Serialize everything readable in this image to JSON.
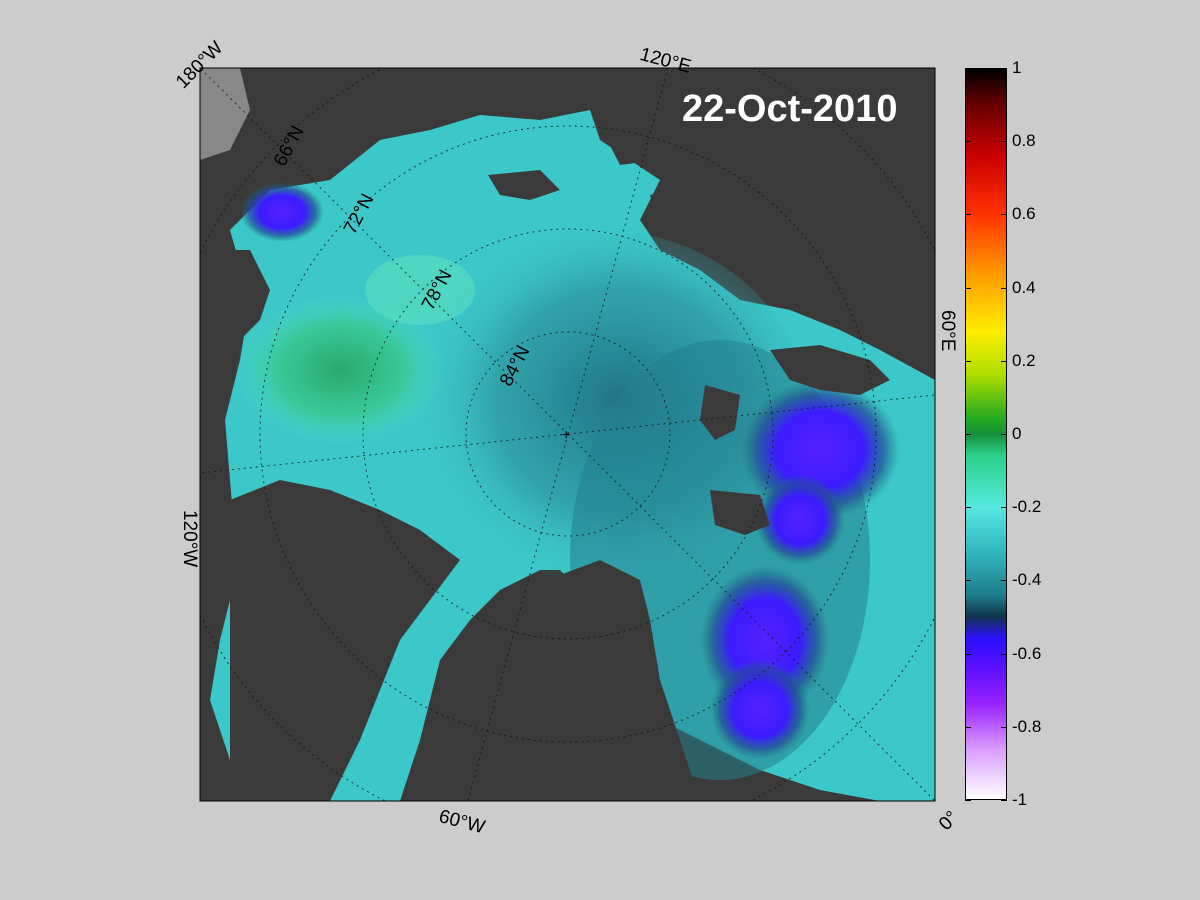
{
  "map": {
    "date": "22-Oct-2010",
    "lon_labels": [
      "180°W",
      "120°E",
      "60°E",
      "0°",
      "60°W",
      "120°W"
    ],
    "lat_labels": [
      "66°N",
      "72°N",
      "78°N",
      "84°N"
    ]
  },
  "colorbar": {
    "ticks": [
      "1",
      "0.8",
      "0.6",
      "0.4",
      "0.2",
      "0",
      "-0.2",
      "-0.4",
      "-0.6",
      "-0.8",
      "-1"
    ],
    "range": [
      -1,
      1
    ]
  },
  "colors": {
    "background": "#cccccc",
    "land": "#3a3a3a",
    "water_base": "#3cc8c8",
    "negative_strong": "#3a1aff",
    "positive_mild": "#2ab36e"
  }
}
